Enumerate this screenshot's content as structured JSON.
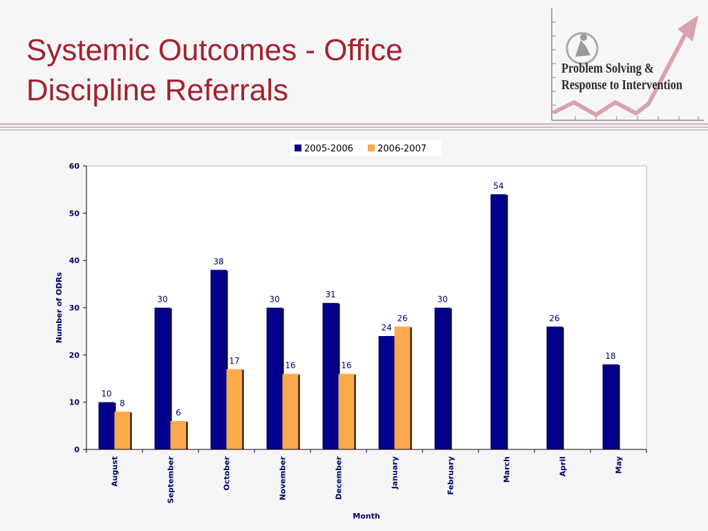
{
  "slide": {
    "title_line1": "Systemic Outcomes - Office",
    "title_line2": "Discipline Referrals"
  },
  "logo": {
    "line1": "Problem Solving &",
    "line2": "Response to Intervention"
  },
  "colors": {
    "title": "#a3222c",
    "series_2005": "#00008b",
    "series_2006": "#ffa94d",
    "axis_text": "#000066"
  },
  "chart_data": {
    "type": "bar",
    "title": "",
    "xlabel": "Month",
    "ylabel": "Number of ODRs",
    "ylim": [
      0,
      60
    ],
    "yticks": [
      0,
      10,
      20,
      30,
      40,
      50,
      60
    ],
    "grid": false,
    "legend_position": "top-center",
    "categories": [
      "August",
      "September",
      "October",
      "November",
      "December",
      "January",
      "February",
      "March",
      "April",
      "May"
    ],
    "series": [
      {
        "name": "2005-2006",
        "values": [
          10,
          30,
          38,
          30,
          31,
          24,
          30,
          54,
          26,
          18
        ]
      },
      {
        "name": "2006-2007",
        "values": [
          8,
          6,
          17,
          16,
          16,
          26,
          null,
          null,
          null,
          null
        ]
      }
    ]
  }
}
